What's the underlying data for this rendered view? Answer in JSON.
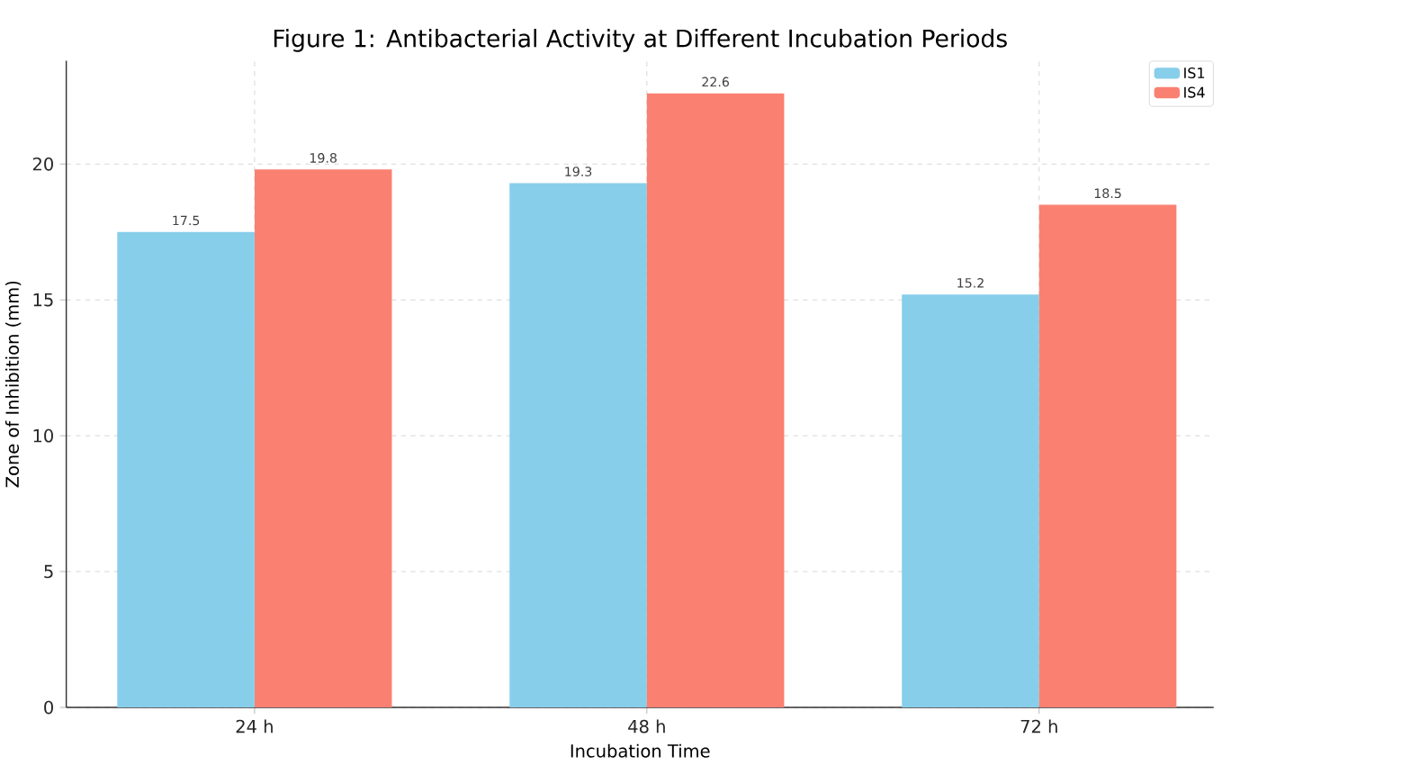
{
  "chart_data": {
    "type": "bar",
    "title": "Figure 1: Antibacterial Activity at Different Incubation Periods",
    "xlabel": "Incubation Time",
    "ylabel": "Zone of Inhibition (mm)",
    "categories": [
      "24 h",
      "48 h",
      "72 h"
    ],
    "series": [
      {
        "name": "IS1",
        "color": "#87ceeb",
        "values": [
          17.5,
          19.3,
          15.2
        ]
      },
      {
        "name": "IS4",
        "color": "#fa8072",
        "values": [
          19.8,
          22.6,
          18.5
        ]
      }
    ],
    "ylim": [
      0,
      23.8
    ],
    "yticks": [
      0,
      5,
      10,
      15,
      20
    ],
    "grid": true,
    "legend": "top right",
    "data_labels": true
  }
}
